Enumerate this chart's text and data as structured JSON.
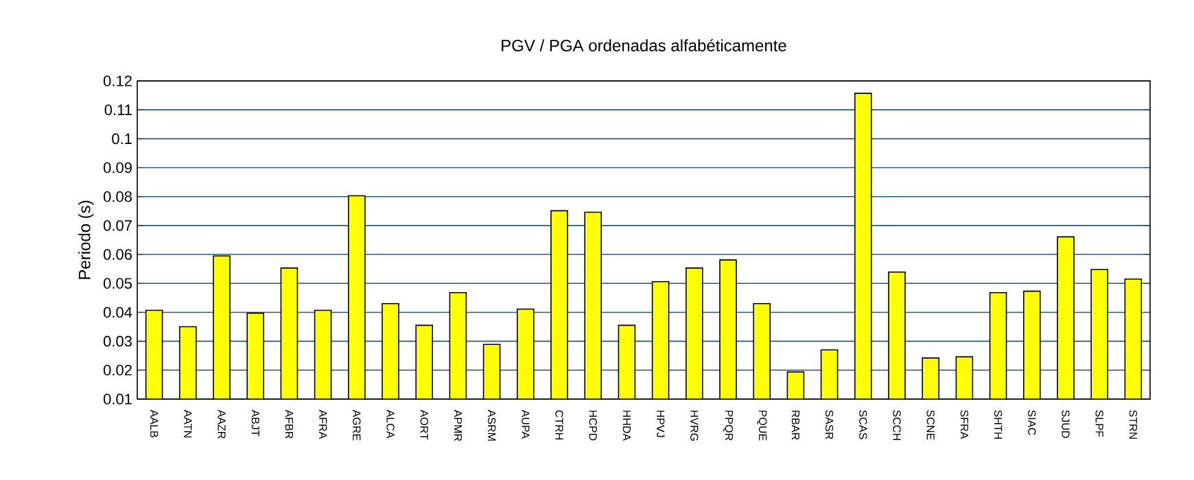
{
  "chart_data": {
    "type": "bar",
    "title": "PGV / PGA ordenadas alfabéticamente",
    "ylabel": "Periodo (s)",
    "categories": [
      "AALB",
      "AATN",
      "AAZR",
      "ABJT",
      "AFBR",
      "AFRA",
      "AGRE",
      "ALCA",
      "AORT",
      "APMR",
      "ASRM",
      "AUPA",
      "CTRH",
      "HCPD",
      "HHDA",
      "HPVJ",
      "HVRG",
      "PPQR",
      "PQUE",
      "RBAR",
      "SASR",
      "SCAS",
      "SCCH",
      "SCNE",
      "SFRA",
      "SHTH",
      "SIAC",
      "SJUD",
      "SLPF",
      "STRN"
    ],
    "values": [
      0.0407,
      0.035,
      0.0595,
      0.0397,
      0.0553,
      0.0407,
      0.0803,
      0.043,
      0.0355,
      0.0468,
      0.0289,
      0.0411,
      0.0751,
      0.0746,
      0.0355,
      0.0506,
      0.0553,
      0.0581,
      0.043,
      0.0194,
      0.027,
      0.1157,
      0.0539,
      0.0242,
      0.0246,
      0.0468,
      0.0473,
      0.0661,
      0.0548,
      0.0515
    ],
    "color": "#ffff00",
    "ylim": [
      0.01,
      0.12
    ],
    "yticks": [
      0.01,
      0.02,
      0.03,
      0.04,
      0.05,
      0.06,
      0.07,
      0.08,
      0.09,
      0.1,
      0.11,
      0.12
    ],
    "grid": "y"
  }
}
